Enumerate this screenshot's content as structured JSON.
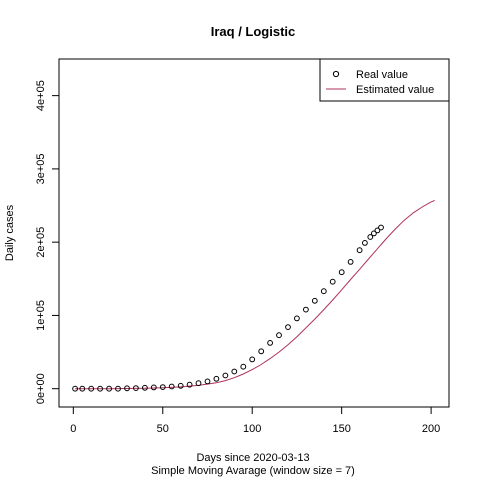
{
  "chart_data": {
    "type": "scatter",
    "title": "Iraq / Logistic",
    "xlabel": "Days since 2020-03-13",
    "xlabel2": "Simple Moving Avarage (window size = 7)",
    "ylabel": "Daily cases",
    "xlim": [
      -8,
      210
    ],
    "ylim": [
      -25000,
      450000
    ],
    "xticks": [
      0,
      50,
      100,
      150,
      200
    ],
    "xtick_labels": [
      "0",
      "50",
      "100",
      "150",
      "200"
    ],
    "yticks": [
      0,
      100000,
      200000,
      300000,
      400000
    ],
    "ytick_labels": [
      "0e+00",
      "1e+05",
      "2e+05",
      "3e+05",
      "4e+05"
    ],
    "grid": false,
    "legend_position": "top-right",
    "series": [
      {
        "name": "Real value",
        "kind": "points",
        "color": "#000000",
        "x": [
          1,
          5,
          10,
          15,
          20,
          25,
          30,
          35,
          40,
          45,
          50,
          55,
          60,
          65,
          70,
          75,
          80,
          85,
          90,
          95,
          100,
          105,
          110,
          115,
          120,
          125,
          130,
          135,
          140,
          145,
          150,
          155,
          160,
          163,
          166,
          168,
          170,
          172
        ],
        "y": [
          0,
          0,
          0,
          0,
          0,
          0,
          500,
          800,
          1200,
          1700,
          2200,
          3000,
          4000,
          5500,
          7500,
          10000,
          13500,
          18000,
          23500,
          30000,
          40000,
          51000,
          62500,
          73000,
          84000,
          96000,
          108000,
          120000,
          133000,
          146000,
          159000,
          173000,
          189000,
          199000,
          207000,
          212000,
          216000,
          220000
        ]
      },
      {
        "name": "Estimated value",
        "kind": "line",
        "color": "#b03060",
        "x": [
          1,
          10,
          20,
          30,
          40,
          50,
          60,
          70,
          80,
          85,
          90,
          95,
          100,
          105,
          110,
          115,
          120,
          125,
          130,
          135,
          140,
          145,
          150,
          155,
          160,
          165,
          170,
          175,
          180,
          185,
          190,
          195,
          200,
          202
        ],
        "y": [
          0,
          0,
          0,
          300,
          700,
          1300,
          2500,
          4500,
          8000,
          11000,
          15000,
          20000,
          26000,
          33000,
          41000,
          50000,
          60000,
          71000,
          83000,
          95000,
          108000,
          121000,
          135000,
          149000,
          163000,
          177000,
          191000,
          205000,
          218000,
          230000,
          240000,
          248000,
          255000,
          257000
        ]
      }
    ]
  }
}
